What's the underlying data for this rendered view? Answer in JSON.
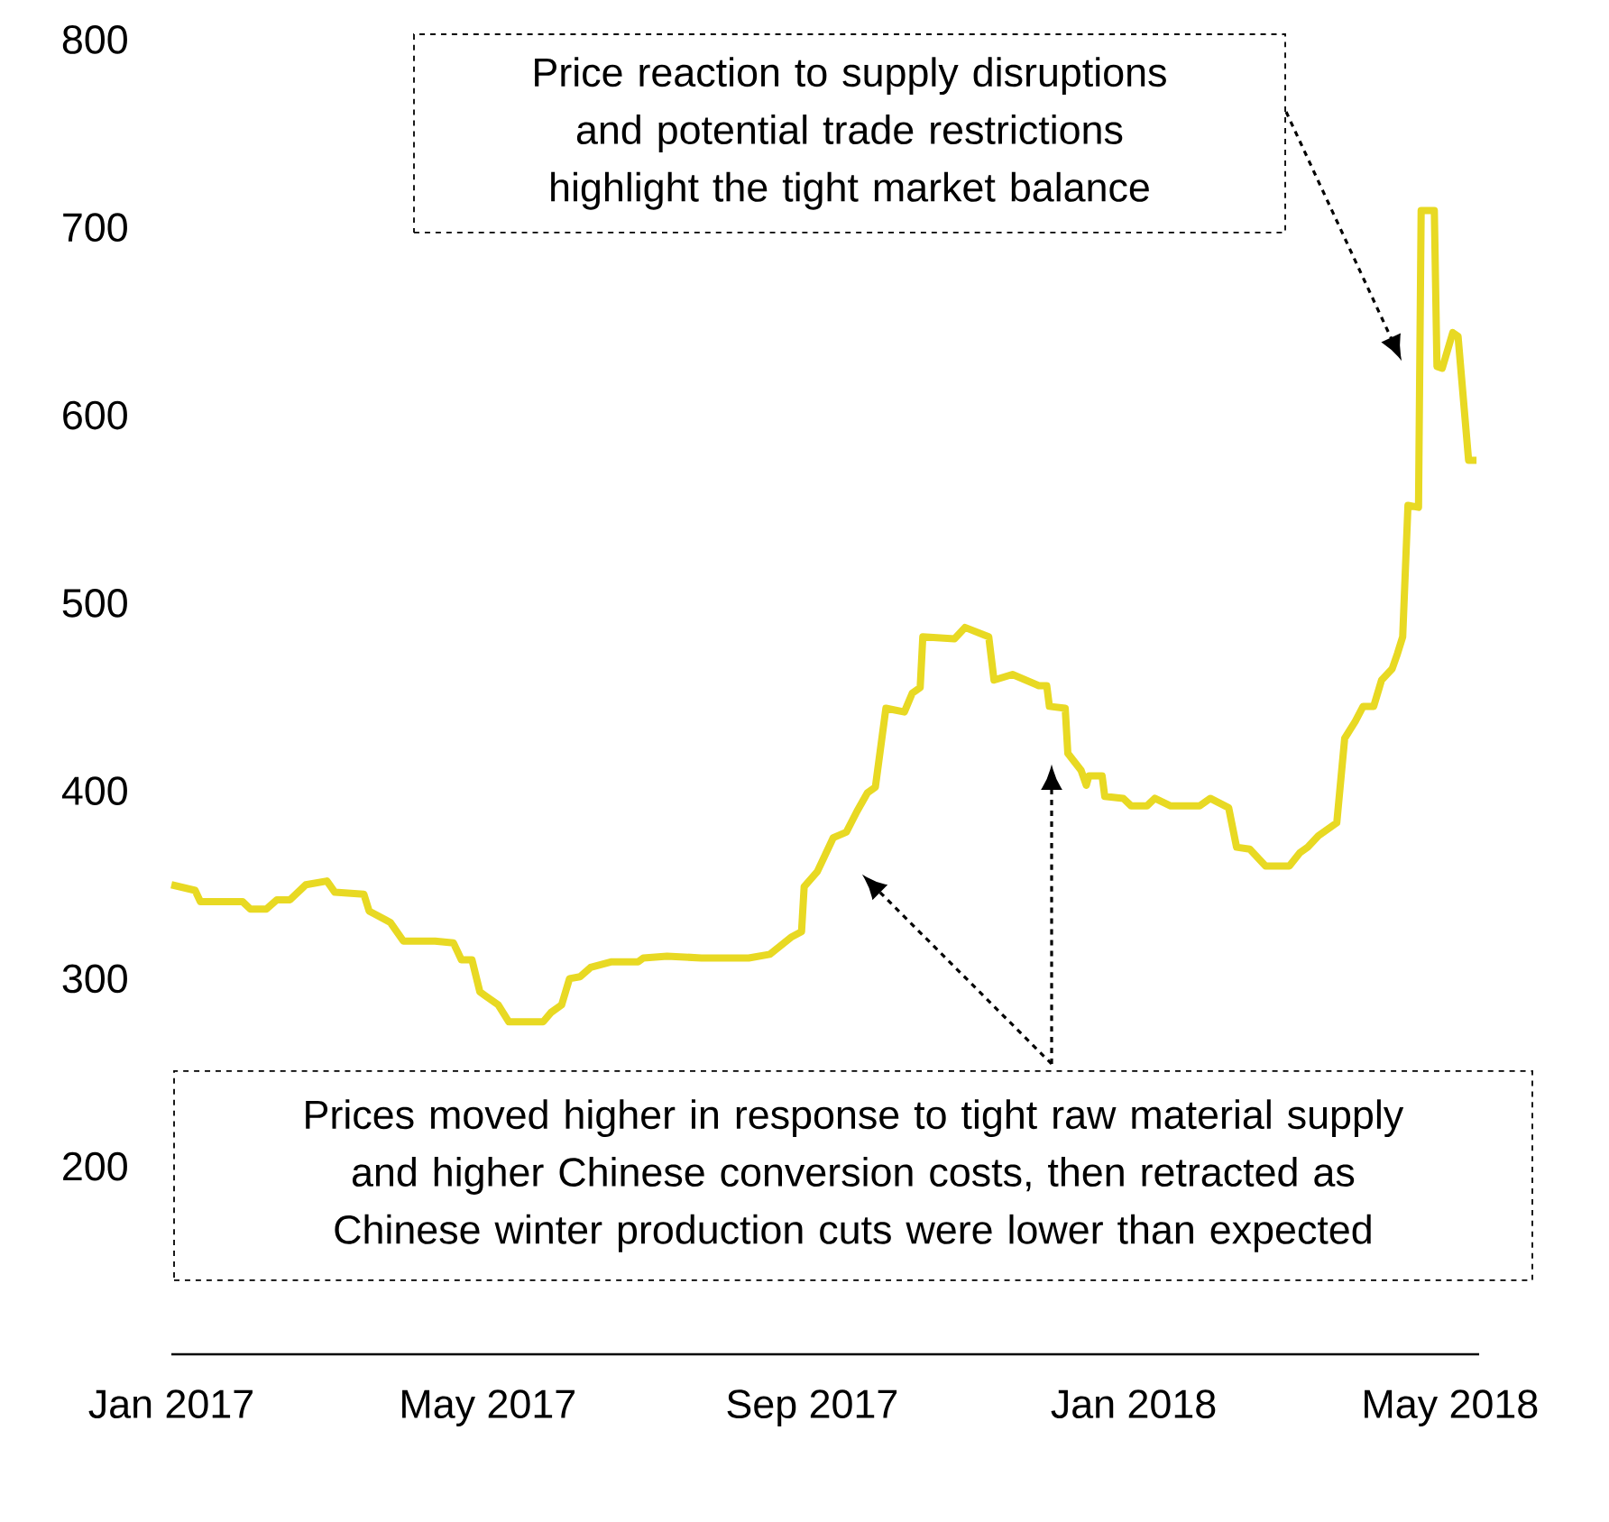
{
  "chart_data": {
    "type": "line",
    "x": [
      "2017-01-01",
      "2017-01-10",
      "2017-01-12",
      "2017-01-28",
      "2017-01-31",
      "2017-02-06",
      "2017-02-10",
      "2017-02-15",
      "2017-02-21",
      "2017-03-01",
      "2017-03-04",
      "2017-03-15",
      "2017-03-17",
      "2017-03-25",
      "2017-03-30",
      "2017-04-11",
      "2017-04-18",
      "2017-04-21",
      "2017-04-25",
      "2017-04-28",
      "2017-04-30",
      "2017-05-05",
      "2017-05-09",
      "2017-05-22",
      "2017-05-25",
      "2017-05-29",
      "2017-06-01",
      "2017-06-05",
      "2017-06-09",
      "2017-06-17",
      "2017-06-27",
      "2017-06-29",
      "2017-07-08",
      "2017-07-21",
      "2017-08-08",
      "2017-08-16",
      "2017-08-24",
      "2017-08-28",
      "2017-08-29",
      "2017-09-03",
      "2017-09-09",
      "2017-09-14",
      "2017-09-18",
      "2017-09-22",
      "2017-09-25",
      "2017-09-29",
      "2017-10-06",
      "2017-10-09",
      "2017-10-12",
      "2017-10-13",
      "2017-10-25",
      "2017-10-29",
      "2017-11-07",
      "2017-11-09",
      "2017-11-16",
      "2017-11-26",
      "2017-11-29",
      "2017-11-30",
      "2017-12-06",
      "2017-12-07",
      "2017-12-12",
      "2017-12-14",
      "2017-12-15",
      "2017-12-20",
      "2017-12-21",
      "2017-12-28",
      "2017-12-31",
      "2018-01-06",
      "2018-01-09",
      "2018-01-15",
      "2018-01-26",
      "2018-01-30",
      "2018-02-06",
      "2018-02-09",
      "2018-02-14",
      "2018-02-20",
      "2018-03-01",
      "2018-03-05",
      "2018-03-08",
      "2018-03-12",
      "2018-03-19",
      "2018-03-22",
      "2018-03-26",
      "2018-03-29",
      "2018-04-02",
      "2018-04-05",
      "2018-04-09",
      "2018-04-11",
      "2018-04-13",
      "2018-04-15",
      "2018-04-19",
      "2018-04-20",
      "2018-04-25",
      "2018-04-26",
      "2018-04-28",
      "2018-05-02",
      "2018-05-04",
      "2018-05-08",
      "2018-05-11"
    ],
    "series": [
      {
        "color": "#e8d923",
        "line_style": "solid",
        "values": [
          350,
          347,
          341,
          341,
          337,
          337,
          342,
          342,
          350,
          352,
          346,
          345,
          336,
          330,
          320,
          320,
          319,
          310,
          310,
          293,
          291,
          286,
          277,
          277,
          282,
          286,
          300,
          301,
          306,
          309,
          309,
          311,
          312,
          311,
          311,
          313,
          322,
          325,
          349,
          357,
          375,
          378,
          389,
          399,
          402,
          444,
          442,
          452,
          455,
          482,
          481,
          487,
          482,
          459,
          462,
          456,
          456,
          445,
          444,
          420,
          411,
          403,
          408,
          408,
          397,
          396,
          392,
          392,
          396,
          392,
          392,
          396,
          391,
          370,
          369,
          360,
          360,
          367,
          370,
          376,
          383,
          428,
          437,
          445,
          445,
          459,
          465,
          473,
          482,
          552,
          551,
          709,
          709,
          626,
          625,
          644,
          642,
          576,
          576
        ]
      }
    ],
    "xlim": [
      "2017-01-01",
      "2018-05-12"
    ],
    "xticks": [
      {
        "value": "2017-01-01",
        "label": "Jan 2017"
      },
      {
        "value": "2017-05-01",
        "label": "May 2017"
      },
      {
        "value": "2017-09-01",
        "label": "Sep 2017"
      },
      {
        "value": "2018-01-01",
        "label": "Jan 2018"
      },
      {
        "value": "2018-05-01",
        "label": "May 2018"
      }
    ],
    "ylim": [
      100,
      800
    ],
    "yticks": [
      200,
      300,
      400,
      500,
      600,
      700,
      800
    ],
    "annotations": [
      "Price reaction to supply disruptions and potential trade restrictions highlight the tight market balance",
      "Prices moved higher in response to tight raw material supply and higher Chinese conversion costs, then retracted as Chinese winter production cuts were lower than expected"
    ]
  }
}
